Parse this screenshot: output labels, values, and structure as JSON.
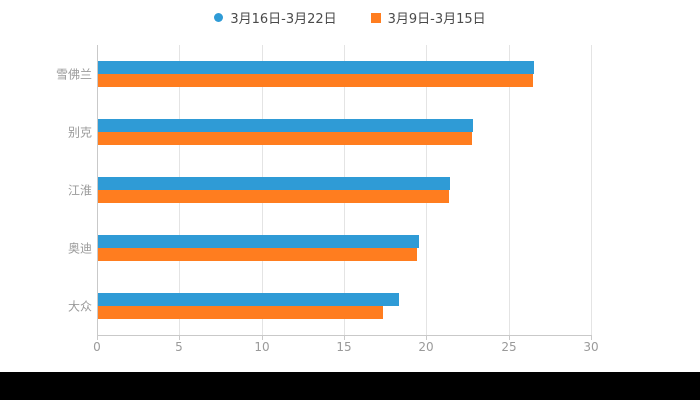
{
  "page": {
    "background_color": "#000000",
    "panel_color": "#ffffff"
  },
  "legend": {
    "items": [
      {
        "label": "3月16日-3月22日",
        "color": "#2f9bd6",
        "marker": "circle"
      },
      {
        "label": "3月9日-3月15日",
        "color": "#ff7d1f",
        "marker": "square"
      }
    ]
  },
  "chart_data": {
    "type": "bar",
    "orientation": "horizontal",
    "title": "",
    "xlabel": "",
    "ylabel": "",
    "categories": [
      "雪佛兰",
      "别克",
      "江淮",
      "奥迪",
      "大众"
    ],
    "series": [
      {
        "name": "3月16日-3月22日",
        "color": "#2f9bd6",
        "values": [
          26.5,
          22.8,
          21.4,
          19.5,
          18.3
        ]
      },
      {
        "name": "3月9日-3月15日",
        "color": "#ff7d1f",
        "values": [
          26.4,
          22.7,
          21.3,
          19.4,
          17.3
        ]
      }
    ],
    "xlim": [
      0,
      30
    ],
    "xticks": [
      0,
      5,
      10,
      15,
      20,
      25,
      30
    ],
    "grid": true,
    "legend_position": "top"
  }
}
